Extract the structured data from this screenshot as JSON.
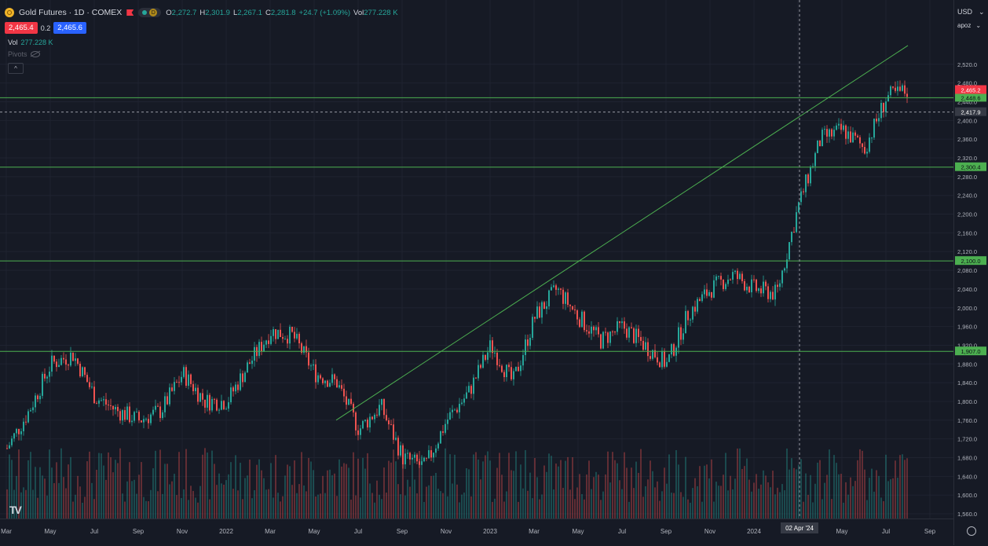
{
  "header": {
    "symbol_title": "Gold Futures · 1D · COMEX",
    "market_status_label": "D",
    "ohlc": {
      "o_label": "O",
      "o": "2,272.7",
      "h_label": "H",
      "h": "2,301.9",
      "l_label": "L",
      "l": "2,267.1",
      "c_label": "C",
      "c": "2,281.8",
      "change": "+24.7 (+1.09%)",
      "vol_label": "Vol",
      "vol": "277.228 K"
    },
    "sell_price": "2,465.4",
    "spread": "0.2",
    "buy_price": "2,465.6",
    "volume_label": "Vol",
    "volume_value": "277.228 K",
    "pivots_label": "Pivots",
    "collapse_symbol": "^"
  },
  "axis_top": {
    "currency": "USD",
    "scale": "apoz"
  },
  "logo": "TV",
  "colors": {
    "up": "#26a69a",
    "down": "#ef5350",
    "level_line": "#4caf50",
    "background": "#161a25"
  },
  "chart_data": {
    "type": "candlestick",
    "title": "",
    "xlabel": "",
    "ylabel": "",
    "ylim": [
      1550,
      2570
    ],
    "y_ticks": [
      "1,560.0",
      "1,600.0",
      "1,640.0",
      "1,680.0",
      "1,720.0",
      "1,760.0",
      "1,800.0",
      "1,840.0",
      "1,880.0",
      "1,920.0",
      "1,960.0",
      "2,000.0",
      "2,040.0",
      "2,080.0",
      "2,120.0",
      "2,160.0",
      "2,200.0",
      "2,240.0",
      "2,280.0",
      "2,320.0",
      "2,360.0",
      "2,400.0",
      "2,440.0",
      "2,480.0",
      "2,520.0"
    ],
    "x_ticks": [
      "Mar",
      "May",
      "Jul",
      "Sep",
      "Nov",
      "2022",
      "Mar",
      "May",
      "Jul",
      "Sep",
      "Nov",
      "2023",
      "Mar",
      "May",
      "Jul",
      "Sep",
      "Nov",
      "2024",
      "Mar",
      "May",
      "Jul",
      "Sep"
    ],
    "crosshair_time_label": "02 Apr '24",
    "horizontal_levels": [
      {
        "price": 2448.6,
        "label": "2,448.6"
      },
      {
        "price": 2300.4,
        "label": "2,300.4"
      },
      {
        "price": 2100.0,
        "label": "2,100.0"
      },
      {
        "price": 1907.0,
        "label": "1,907.0"
      }
    ],
    "last_price": {
      "price": 2465.2,
      "label": "2,465.2"
    },
    "crosshair_price": {
      "price": 2417.9,
      "label": "2,417.9"
    },
    "trendline": {
      "from": {
        "date": "2022-06",
        "price": 1760
      },
      "to": {
        "date": "2024-08",
        "price": 2560
      }
    },
    "price_path": [
      [
        "2021-03",
        1700
      ],
      [
        "2021-04",
        1780
      ],
      [
        "2021-05",
        1880
      ],
      [
        "2021-06",
        1900
      ],
      [
        "2021-07",
        1810
      ],
      [
        "2021-08",
        1780
      ],
      [
        "2021-09",
        1760
      ],
      [
        "2021-10",
        1780
      ],
      [
        "2021-11",
        1860
      ],
      [
        "2021-12",
        1800
      ],
      [
        "2022-01",
        1800
      ],
      [
        "2022-02",
        1880
      ],
      [
        "2022-03",
        1950
      ],
      [
        "2022-04",
        1940
      ],
      [
        "2022-05",
        1860
      ],
      [
        "2022-06",
        1840
      ],
      [
        "2022-07",
        1740
      ],
      [
        "2022-08",
        1790
      ],
      [
        "2022-09",
        1680
      ],
      [
        "2022-10",
        1660
      ],
      [
        "2022-11",
        1760
      ],
      [
        "2022-12",
        1820
      ],
      [
        "2023-01",
        1920
      ],
      [
        "2023-02",
        1840
      ],
      [
        "2023-03",
        1980
      ],
      [
        "2023-04",
        2040
      ],
      [
        "2023-05",
        1980
      ],
      [
        "2023-06",
        1930
      ],
      [
        "2023-07",
        1960
      ],
      [
        "2023-08",
        1920
      ],
      [
        "2023-09",
        1880
      ],
      [
        "2023-10",
        1990
      ],
      [
        "2023-11",
        2040
      ],
      [
        "2023-12",
        2070
      ],
      [
        "2024-01",
        2040
      ],
      [
        "2024-02",
        2030
      ],
      [
        "2024-03",
        2220
      ],
      [
        "2024-04",
        2360
      ],
      [
        "2024-05",
        2380
      ],
      [
        "2024-06",
        2340
      ],
      [
        "2024-07",
        2450
      ],
      [
        "2024-08",
        2465
      ]
    ]
  }
}
